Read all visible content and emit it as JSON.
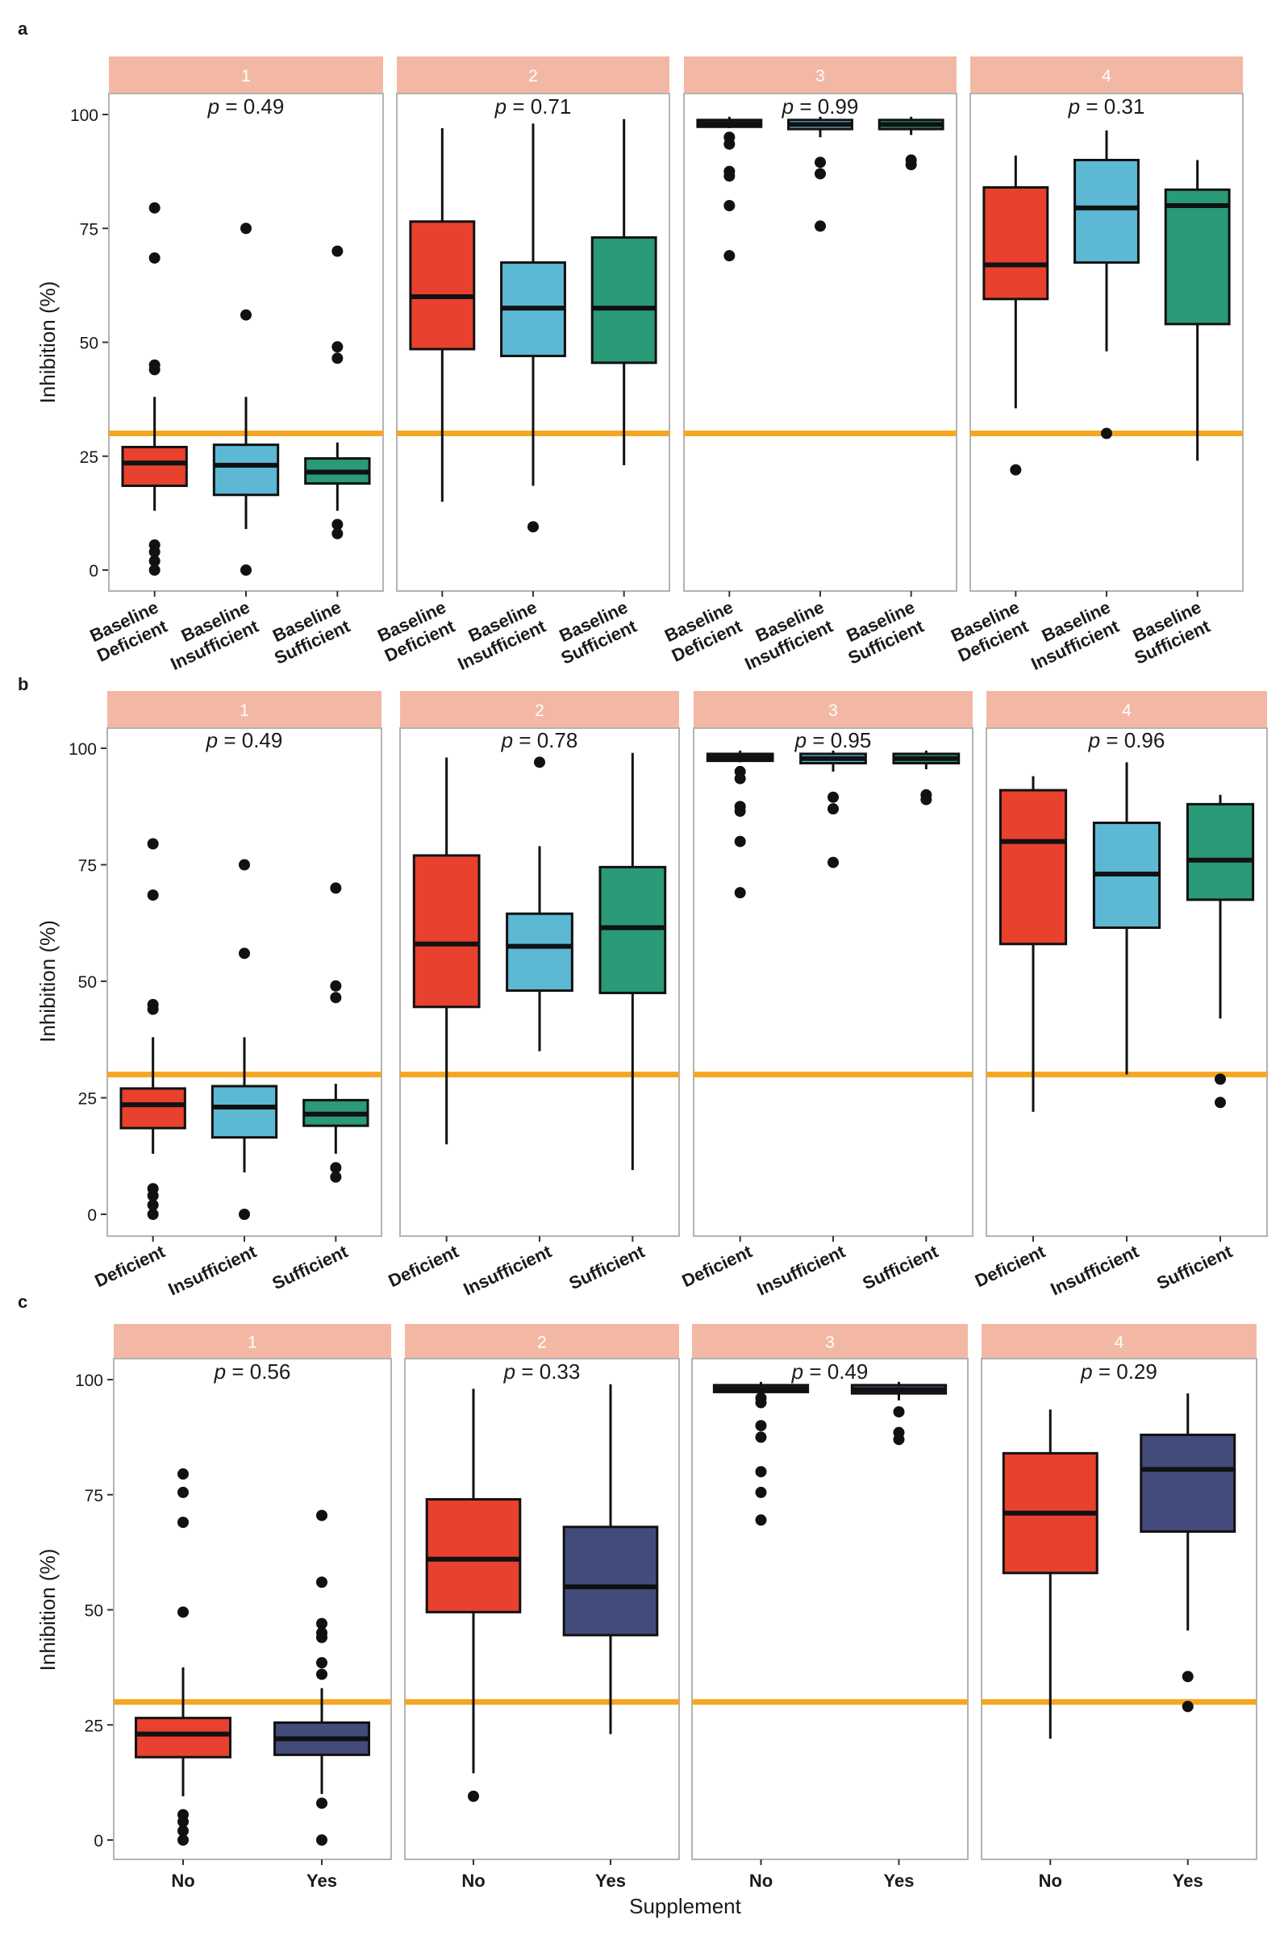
{
  "chart_data": [
    {
      "type": "boxplot",
      "panel_label": "a",
      "ylabel": "Inhibition (%)",
      "ylim": [
        0,
        100
      ],
      "yticks": [
        0,
        25,
        50,
        75,
        100
      ],
      "threshold": 30,
      "categories": [
        "Baseline Deficient",
        "Baseline Insufficient",
        "Baseline Sufficient"
      ],
      "category_lines": [
        [
          "Baseline",
          "Deficient"
        ],
        [
          "Baseline",
          "Insufficient"
        ],
        [
          "Baseline",
          "Sufficient"
        ]
      ],
      "category_colors": [
        "#e8412e",
        "#5cb8d3",
        "#2a9a78"
      ],
      "facets": [
        {
          "strip": "1",
          "p_prefix": "p",
          "p_value": " = 0.49",
          "boxes": [
            {
              "whisker_low": 13,
              "q1": 18.5,
              "median": 23.5,
              "q3": 27,
              "whisker_high": 38,
              "outliers": [
                79.5,
                68.5,
                45,
                44,
                5.5,
                4,
                2,
                0
              ]
            },
            {
              "whisker_low": 9,
              "q1": 16.5,
              "median": 23,
              "q3": 27.5,
              "whisker_high": 38,
              "outliers": [
                75,
                56,
                0
              ]
            },
            {
              "whisker_low": 13,
              "q1": 19,
              "median": 21.5,
              "q3": 24.5,
              "whisker_high": 28,
              "outliers": [
                70,
                49,
                46.5,
                10,
                8
              ]
            }
          ]
        },
        {
          "strip": "2",
          "p_prefix": "p",
          "p_value": " = 0.71",
          "boxes": [
            {
              "whisker_low": 15,
              "q1": 48.5,
              "median": 60,
              "q3": 76.5,
              "whisker_high": 97,
              "outliers": []
            },
            {
              "whisker_low": 18.5,
              "q1": 47,
              "median": 57.5,
              "q3": 67.5,
              "whisker_high": 98,
              "outliers": [
                9.5
              ]
            },
            {
              "whisker_low": 23,
              "q1": 45.5,
              "median": 57.5,
              "q3": 73,
              "whisker_high": 99,
              "outliers": []
            }
          ]
        },
        {
          "strip": "3",
          "p_prefix": "p",
          "p_value": " = 0.99",
          "boxes": [
            {
              "whisker_low": 97,
              "q1": 97.3,
              "median": 98,
              "q3": 98.8,
              "whisker_high": 99.5,
              "outliers": [
                95,
                93.5,
                87.5,
                86.5,
                80,
                69
              ]
            },
            {
              "whisker_low": 95,
              "q1": 96.8,
              "median": 97.8,
              "q3": 98.8,
              "whisker_high": 99.5,
              "outliers": [
                89.5,
                87,
                75.5
              ]
            },
            {
              "whisker_low": 95.5,
              "q1": 96.8,
              "median": 97.8,
              "q3": 98.8,
              "whisker_high": 99.5,
              "outliers": [
                90,
                89
              ]
            }
          ]
        },
        {
          "strip": "4",
          "p_prefix": "p",
          "p_value": " = 0.31",
          "boxes": [
            {
              "whisker_low": 35.5,
              "q1": 59.5,
              "median": 67,
              "q3": 84,
              "whisker_high": 91,
              "outliers": [
                22
              ]
            },
            {
              "whisker_low": 48,
              "q1": 67.5,
              "median": 79.5,
              "q3": 90,
              "whisker_high": 96.5,
              "outliers": [
                30
              ]
            },
            {
              "whisker_low": 24,
              "q1": 54,
              "median": 80,
              "q3": 83.5,
              "whisker_high": 90,
              "outliers": []
            }
          ]
        }
      ]
    },
    {
      "type": "boxplot",
      "panel_label": "b",
      "ylabel": "Inhibition (%)",
      "ylim": [
        0,
        100
      ],
      "yticks": [
        0,
        25,
        50,
        75,
        100
      ],
      "threshold": 30,
      "categories": [
        "Deficient",
        "Insufficient",
        "Sufficient"
      ],
      "category_lines": [
        [
          "Deficient"
        ],
        [
          "Insufficient"
        ],
        [
          "Sufficient"
        ]
      ],
      "category_colors": [
        "#e8412e",
        "#5cb8d3",
        "#2a9a78"
      ],
      "facets": [
        {
          "strip": "1",
          "p_prefix": "p",
          "p_value": " = 0.49",
          "boxes": [
            {
              "whisker_low": 13,
              "q1": 18.5,
              "median": 23.5,
              "q3": 27,
              "whisker_high": 38,
              "outliers": [
                79.5,
                68.5,
                45,
                44,
                5.5,
                4,
                2,
                0
              ]
            },
            {
              "whisker_low": 9,
              "q1": 16.5,
              "median": 23,
              "q3": 27.5,
              "whisker_high": 38,
              "outliers": [
                75,
                56,
                0
              ]
            },
            {
              "whisker_low": 13,
              "q1": 19,
              "median": 21.5,
              "q3": 24.5,
              "whisker_high": 28,
              "outliers": [
                70,
                49,
                46.5,
                10,
                8
              ]
            }
          ]
        },
        {
          "strip": "2",
          "p_prefix": "p",
          "p_value": " = 0.78",
          "boxes": [
            {
              "whisker_low": 15,
              "q1": 44.5,
              "median": 58,
              "q3": 77,
              "whisker_high": 98,
              "outliers": []
            },
            {
              "whisker_low": 35,
              "q1": 48,
              "median": 57.5,
              "q3": 64.5,
              "whisker_high": 79,
              "outliers": [
                97
              ]
            },
            {
              "whisker_low": 9.5,
              "q1": 47.5,
              "median": 61.5,
              "q3": 74.5,
              "whisker_high": 99,
              "outliers": []
            }
          ]
        },
        {
          "strip": "3",
          "p_prefix": "p",
          "p_value": " = 0.95",
          "boxes": [
            {
              "whisker_low": 97,
              "q1": 97.3,
              "median": 98,
              "q3": 98.8,
              "whisker_high": 99.5,
              "outliers": [
                95,
                93.5,
                87.5,
                86.5,
                80,
                69
              ]
            },
            {
              "whisker_low": 95,
              "q1": 96.8,
              "median": 97.8,
              "q3": 98.8,
              "whisker_high": 99.5,
              "outliers": [
                89.5,
                87,
                75.5
              ]
            },
            {
              "whisker_low": 95.5,
              "q1": 96.8,
              "median": 97.8,
              "q3": 98.8,
              "whisker_high": 99.5,
              "outliers": [
                90,
                89
              ]
            }
          ]
        },
        {
          "strip": "4",
          "p_prefix": "p",
          "p_value": " = 0.96",
          "boxes": [
            {
              "whisker_low": 22,
              "q1": 58,
              "median": 80,
              "q3": 91,
              "whisker_high": 94,
              "outliers": []
            },
            {
              "whisker_low": 30,
              "q1": 61.5,
              "median": 73,
              "q3": 84,
              "whisker_high": 97,
              "outliers": []
            },
            {
              "whisker_low": 42,
              "q1": 67.5,
              "median": 76,
              "q3": 88,
              "whisker_high": 90,
              "outliers": [
                29,
                24
              ]
            }
          ]
        }
      ]
    },
    {
      "type": "boxplot",
      "panel_label": "c",
      "ylabel": "Inhibition (%)",
      "xlabel": "Supplement",
      "ylim": [
        0,
        100
      ],
      "yticks": [
        0,
        25,
        50,
        75,
        100
      ],
      "threshold": 30,
      "categories": [
        "No",
        "Yes"
      ],
      "category_lines": [
        [
          "No"
        ],
        [
          "Yes"
        ]
      ],
      "category_colors": [
        "#e8412e",
        "#434b7a"
      ],
      "facets": [
        {
          "strip": "1",
          "p_prefix": "p",
          "p_value": " = 0.56",
          "boxes": [
            {
              "whisker_low": 9.5,
              "q1": 18,
              "median": 23,
              "q3": 26.5,
              "whisker_high": 37.5,
              "outliers": [
                79.5,
                75.5,
                69,
                49.5,
                5.5,
                4,
                2,
                0
              ]
            },
            {
              "whisker_low": 10,
              "q1": 18.5,
              "median": 22,
              "q3": 25.5,
              "whisker_high": 33,
              "outliers": [
                70.5,
                56,
                47,
                45,
                44,
                38.5,
                36,
                8,
                0
              ]
            }
          ]
        },
        {
          "strip": "2",
          "p_prefix": "p",
          "p_value": " = 0.33",
          "boxes": [
            {
              "whisker_low": 14.5,
              "q1": 49.5,
              "median": 61,
              "q3": 74,
              "whisker_high": 98,
              "outliers": [
                9.5
              ]
            },
            {
              "whisker_low": 23,
              "q1": 44.5,
              "median": 55,
              "q3": 68,
              "whisker_high": 99,
              "outliers": []
            }
          ]
        },
        {
          "strip": "3",
          "p_prefix": "p",
          "p_value": " = 0.49",
          "boxes": [
            {
              "whisker_low": 97,
              "q1": 97.3,
              "median": 98,
              "q3": 98.8,
              "whisker_high": 99.5,
              "outliers": [
                96,
                95,
                90,
                87.5,
                80,
                75.5,
                69.5
              ]
            },
            {
              "whisker_low": 95.5,
              "q1": 97,
              "median": 97.8,
              "q3": 98.8,
              "whisker_high": 99.5,
              "outliers": [
                93,
                88.5,
                87
              ]
            }
          ]
        },
        {
          "strip": "4",
          "p_prefix": "p",
          "p_value": " = 0.29",
          "boxes": [
            {
              "whisker_low": 22,
              "q1": 58,
              "median": 71,
              "q3": 84,
              "whisker_high": 93.5,
              "outliers": []
            },
            {
              "whisker_low": 45.5,
              "q1": 67,
              "median": 80.5,
              "q3": 88,
              "whisker_high": 97,
              "outliers": [
                35.5,
                29
              ]
            }
          ]
        }
      ]
    }
  ],
  "colors": {
    "strip_fill": "#f3b8a4",
    "strip_text": "#ffffff",
    "threshold_line": "#f5a623",
    "panel_border": "#b3b3b3",
    "text": "#1a1a1a"
  }
}
